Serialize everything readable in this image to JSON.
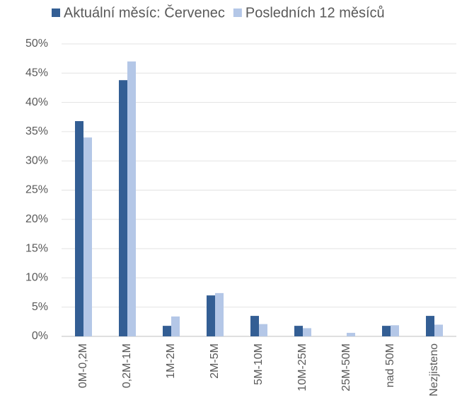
{
  "chart_data": {
    "type": "bar",
    "categories": [
      "0M-0,2M",
      "0,2M-1M",
      "1M-2M",
      "2M-5M",
      "5M-10M",
      "10M-25M",
      "25M-50M",
      "nad 50M",
      "Nezjisteno"
    ],
    "series": [
      {
        "name": "Aktuální měsíc: Červenec",
        "color": "#335e94",
        "values": [
          36.8,
          43.8,
          1.8,
          7.0,
          3.5,
          1.8,
          0,
          1.8,
          3.5
        ]
      },
      {
        "name": "Posledních 12 měsíců",
        "color": "#b4c7e7",
        "values": [
          34.0,
          47.0,
          3.4,
          7.4,
          2.1,
          1.4,
          0.6,
          1.9,
          2.0
        ]
      }
    ],
    "ylim": [
      0,
      50
    ],
    "yticks": [
      {
        "value": 0,
        "label": "0%"
      },
      {
        "value": 5,
        "label": "5%"
      },
      {
        "value": 10,
        "label": "10%"
      },
      {
        "value": 15,
        "label": "15%"
      },
      {
        "value": 20,
        "label": "20%"
      },
      {
        "value": 25,
        "label": "25%"
      },
      {
        "value": 30,
        "label": "30%"
      },
      {
        "value": 35,
        "label": "35%"
      },
      {
        "value": 40,
        "label": "40%"
      },
      {
        "value": 45,
        "label": "45%"
      },
      {
        "value": 50,
        "label": "50%"
      }
    ],
    "grid": true,
    "legend": "top"
  }
}
